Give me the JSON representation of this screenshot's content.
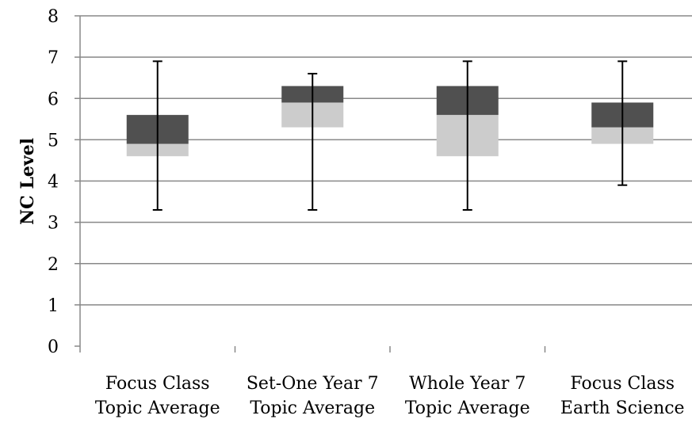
{
  "chart_data": {
    "type": "boxplot",
    "title": "",
    "xlabel": "",
    "ylabel": "NC Level",
    "ylim": [
      0,
      8
    ],
    "yticks": [
      "0",
      "1",
      "2",
      "3",
      "4",
      "5",
      "6",
      "7",
      "8"
    ],
    "grid": "horizontal",
    "categories": [
      [
        "Focus Class",
        "Topic Average"
      ],
      [
        "Set-One Year 7",
        "Topic Average"
      ],
      [
        "Whole Year 7",
        "Topic Average"
      ],
      [
        "Focus Class",
        "Earth Science"
      ]
    ],
    "boxes": [
      {
        "min": 3.3,
        "q1": 4.6,
        "median": 4.9,
        "q3": 5.6,
        "max": 6.9
      },
      {
        "min": 3.3,
        "q1": 5.3,
        "median": 5.9,
        "q3": 6.3,
        "max": 6.6
      },
      {
        "min": 3.3,
        "q1": 4.6,
        "median": 5.6,
        "q3": 6.3,
        "max": 6.9
      },
      {
        "min": 3.9,
        "q1": 4.9,
        "median": 5.3,
        "q3": 5.9,
        "max": 6.9
      }
    ],
    "colors": {
      "lower_box": "#cccccc",
      "upper_box": "#505050",
      "whisker": "#000000",
      "grid": "#888888",
      "axis": "#888888"
    }
  }
}
